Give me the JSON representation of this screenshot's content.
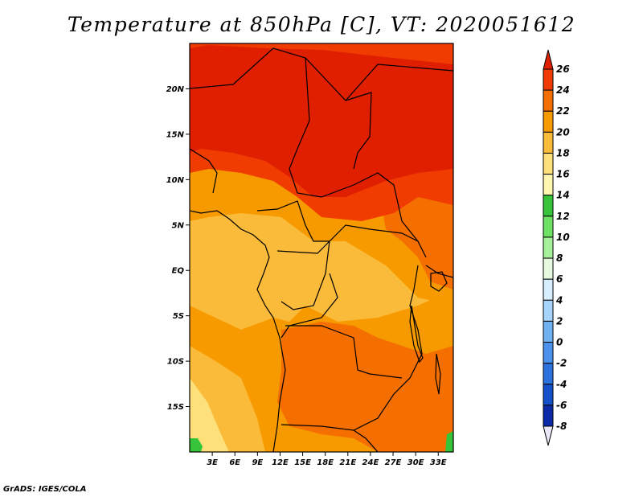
{
  "title": "Temperature at 850hPa [C], VT: 2020051612",
  "credit": "GrADS: IGES/COLA",
  "map": {
    "lon_range": [
      0,
      35
    ],
    "lat_range": [
      -20,
      25
    ],
    "lat_ticks": [
      {
        "value": 20,
        "label": "20N"
      },
      {
        "value": 15,
        "label": "15N"
      },
      {
        "value": 10,
        "label": "10N"
      },
      {
        "value": 5,
        "label": "5N"
      },
      {
        "value": 0,
        "label": "EQ"
      },
      {
        "value": -5,
        "label": "5S"
      },
      {
        "value": -10,
        "label": "10S"
      },
      {
        "value": -15,
        "label": "15S"
      }
    ],
    "lon_ticks": [
      {
        "value": 3,
        "label": "3E"
      },
      {
        "value": 6,
        "label": "6E"
      },
      {
        "value": 9,
        "label": "9E"
      },
      {
        "value": 12,
        "label": "12E"
      },
      {
        "value": 15,
        "label": "15E"
      },
      {
        "value": 18,
        "label": "18E"
      },
      {
        "value": 21,
        "label": "21E"
      },
      {
        "value": 24,
        "label": "24E"
      },
      {
        "value": 27,
        "label": "27E"
      },
      {
        "value": 30,
        "label": "30E"
      },
      {
        "value": 33,
        "label": "33E"
      }
    ]
  },
  "colorbar": {
    "levels": [
      26,
      24,
      22,
      20,
      18,
      16,
      14,
      12,
      10,
      8,
      6,
      4,
      2,
      0,
      -2,
      -4,
      -6,
      -8
    ],
    "labels": [
      "26",
      "24",
      "22",
      "20",
      "18",
      "16",
      "14",
      "12",
      "10",
      "8",
      "6",
      "4",
      "2",
      "0",
      "-2",
      "-4",
      "-6",
      "-8"
    ],
    "colors": [
      "#e01e00",
      "#f03c00",
      "#f56e00",
      "#f79a00",
      "#fbbb3a",
      "#fde07a",
      "#fff6b0",
      "#36c43a",
      "#6ee064",
      "#a6f09c",
      "#e6fae0",
      "#d6eefe",
      "#a6d4fa",
      "#6eb2f2",
      "#4a92ec",
      "#2c72de",
      "#1450ca",
      "#0a2aa8",
      "#0a1478",
      "#e8e8f8"
    ]
  },
  "colors": {
    "hot": "#e01e00",
    "warm": "#f03c00",
    "mid": "#f56e00",
    "cool": "#f79a00",
    "mild": "#fbbb3a",
    "pale": "#fde07a",
    "green": "#36c43a"
  }
}
